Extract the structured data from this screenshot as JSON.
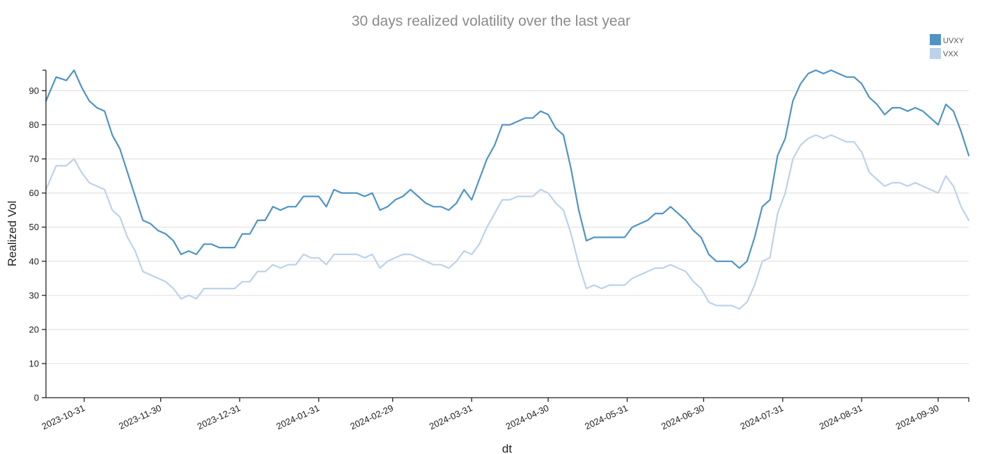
{
  "chart_data": {
    "type": "line",
    "title": "30 days realized volatility over the last year",
    "xlabel": "dt",
    "ylabel": "Realized Vol",
    "ylim": [
      0,
      96
    ],
    "xlim": [
      "2023-10-16",
      "2024-10-12"
    ],
    "yticks": [
      0,
      10,
      20,
      30,
      40,
      50,
      60,
      70,
      80,
      90
    ],
    "xticks": [
      "2023-10-31",
      "2023-11-30",
      "2023-12-31",
      "2024-01-31",
      "2024-02-29",
      "2024-03-31",
      "2024-04-30",
      "2024-05-31",
      "2024-06-30",
      "2024-07-31",
      "2024-08-31",
      "2024-09-30"
    ],
    "grid": true,
    "legend_position": "top-right",
    "series": [
      {
        "name": "UVXY",
        "color": "#4f94c4",
        "x": [
          "2023-10-16",
          "2023-10-20",
          "2023-10-24",
          "2023-10-27",
          "2023-10-30",
          "2023-11-02",
          "2023-11-05",
          "2023-11-08",
          "2023-11-11",
          "2023-11-14",
          "2023-11-17",
          "2023-11-20",
          "2023-11-23",
          "2023-11-26",
          "2023-11-29",
          "2023-12-02",
          "2023-12-05",
          "2023-12-08",
          "2023-12-11",
          "2023-12-14",
          "2023-12-17",
          "2023-12-20",
          "2023-12-23",
          "2023-12-26",
          "2023-12-29",
          "2024-01-01",
          "2024-01-04",
          "2024-01-07",
          "2024-01-10",
          "2024-01-13",
          "2024-01-16",
          "2024-01-19",
          "2024-01-22",
          "2024-01-25",
          "2024-01-28",
          "2024-01-31",
          "2024-02-03",
          "2024-02-06",
          "2024-02-09",
          "2024-02-12",
          "2024-02-15",
          "2024-02-18",
          "2024-02-21",
          "2024-02-24",
          "2024-02-27",
          "2024-03-01",
          "2024-03-04",
          "2024-03-07",
          "2024-03-10",
          "2024-03-13",
          "2024-03-16",
          "2024-03-19",
          "2024-03-22",
          "2024-03-25",
          "2024-03-28",
          "2024-03-31",
          "2024-04-03",
          "2024-04-06",
          "2024-04-09",
          "2024-04-12",
          "2024-04-15",
          "2024-04-18",
          "2024-04-21",
          "2024-04-24",
          "2024-04-27",
          "2024-04-30",
          "2024-05-03",
          "2024-05-06",
          "2024-05-09",
          "2024-05-12",
          "2024-05-15",
          "2024-05-18",
          "2024-05-21",
          "2024-05-24",
          "2024-05-27",
          "2024-05-30",
          "2024-06-02",
          "2024-06-05",
          "2024-06-08",
          "2024-06-11",
          "2024-06-14",
          "2024-06-17",
          "2024-06-20",
          "2024-06-23",
          "2024-06-26",
          "2024-06-29",
          "2024-07-02",
          "2024-07-05",
          "2024-07-08",
          "2024-07-11",
          "2024-07-14",
          "2024-07-17",
          "2024-07-20",
          "2024-07-23",
          "2024-07-26",
          "2024-07-29",
          "2024-08-01",
          "2024-08-04",
          "2024-08-07",
          "2024-08-10",
          "2024-08-13",
          "2024-08-16",
          "2024-08-19",
          "2024-08-22",
          "2024-08-25",
          "2024-08-28",
          "2024-08-31",
          "2024-09-03",
          "2024-09-06",
          "2024-09-09",
          "2024-09-12",
          "2024-09-15",
          "2024-09-18",
          "2024-09-21",
          "2024-09-24",
          "2024-09-27",
          "2024-09-30",
          "2024-10-03",
          "2024-10-06",
          "2024-10-09",
          "2024-10-12"
        ],
        "values": [
          87,
          94,
          93,
          96,
          91,
          87,
          85,
          84,
          77,
          73,
          66,
          59,
          52,
          51,
          49,
          48,
          46,
          42,
          43,
          42,
          45,
          45,
          44,
          44,
          44,
          48,
          48,
          52,
          52,
          56,
          55,
          56,
          56,
          59,
          59,
          59,
          56,
          61,
          60,
          60,
          60,
          59,
          60,
          55,
          56,
          58,
          59,
          61,
          59,
          57,
          56,
          56,
          55,
          57,
          61,
          58,
          64,
          70,
          74,
          80,
          80,
          81,
          82,
          82,
          84,
          83,
          79,
          77,
          67,
          55,
          46,
          47,
          47,
          47,
          47,
          47,
          50,
          51,
          52,
          54,
          54,
          56,
          54,
          52,
          49,
          47,
          42,
          40,
          40,
          40,
          38,
          40,
          47,
          56,
          58,
          71,
          76,
          87,
          92,
          95,
          96,
          95,
          96,
          95,
          94,
          94,
          92,
          88,
          86,
          83,
          85,
          85,
          84,
          85,
          84,
          82,
          80,
          86,
          84,
          78,
          71
        ]
      },
      {
        "name": "VXX",
        "color": "#bcd2ea",
        "x": [
          "2023-10-16",
          "2023-10-20",
          "2023-10-24",
          "2023-10-27",
          "2023-10-30",
          "2023-11-02",
          "2023-11-05",
          "2023-11-08",
          "2023-11-11",
          "2023-11-14",
          "2023-11-17",
          "2023-11-20",
          "2023-11-23",
          "2023-11-26",
          "2023-11-29",
          "2023-12-02",
          "2023-12-05",
          "2023-12-08",
          "2023-12-11",
          "2023-12-14",
          "2023-12-17",
          "2023-12-20",
          "2023-12-23",
          "2023-12-26",
          "2023-12-29",
          "2024-01-01",
          "2024-01-04",
          "2024-01-07",
          "2024-01-10",
          "2024-01-13",
          "2024-01-16",
          "2024-01-19",
          "2024-01-22",
          "2024-01-25",
          "2024-01-28",
          "2024-01-31",
          "2024-02-03",
          "2024-02-06",
          "2024-02-09",
          "2024-02-12",
          "2024-02-15",
          "2024-02-18",
          "2024-02-21",
          "2024-02-24",
          "2024-02-27",
          "2024-03-01",
          "2024-03-04",
          "2024-03-07",
          "2024-03-10",
          "2024-03-13",
          "2024-03-16",
          "2024-03-19",
          "2024-03-22",
          "2024-03-25",
          "2024-03-28",
          "2024-03-31",
          "2024-04-03",
          "2024-04-06",
          "2024-04-09",
          "2024-04-12",
          "2024-04-15",
          "2024-04-18",
          "2024-04-21",
          "2024-04-24",
          "2024-04-27",
          "2024-04-30",
          "2024-05-03",
          "2024-05-06",
          "2024-05-09",
          "2024-05-12",
          "2024-05-15",
          "2024-05-18",
          "2024-05-21",
          "2024-05-24",
          "2024-05-27",
          "2024-05-30",
          "2024-06-02",
          "2024-06-05",
          "2024-06-08",
          "2024-06-11",
          "2024-06-14",
          "2024-06-17",
          "2024-06-20",
          "2024-06-23",
          "2024-06-26",
          "2024-06-29",
          "2024-07-02",
          "2024-07-05",
          "2024-07-08",
          "2024-07-11",
          "2024-07-14",
          "2024-07-17",
          "2024-07-20",
          "2024-07-23",
          "2024-07-26",
          "2024-07-29",
          "2024-08-01",
          "2024-08-04",
          "2024-08-07",
          "2024-08-10",
          "2024-08-13",
          "2024-08-16",
          "2024-08-19",
          "2024-08-22",
          "2024-08-25",
          "2024-08-28",
          "2024-08-31",
          "2024-09-03",
          "2024-09-06",
          "2024-09-09",
          "2024-09-12",
          "2024-09-15",
          "2024-09-18",
          "2024-09-21",
          "2024-09-24",
          "2024-09-27",
          "2024-09-30",
          "2024-10-03",
          "2024-10-06",
          "2024-10-09",
          "2024-10-12"
        ],
        "values": [
          61,
          68,
          68,
          70,
          66,
          63,
          62,
          61,
          55,
          53,
          47,
          43,
          37,
          36,
          35,
          34,
          32,
          29,
          30,
          29,
          32,
          32,
          32,
          32,
          32,
          34,
          34,
          37,
          37,
          39,
          38,
          39,
          39,
          42,
          41,
          41,
          39,
          42,
          42,
          42,
          42,
          41,
          42,
          38,
          40,
          41,
          42,
          42,
          41,
          40,
          39,
          39,
          38,
          40,
          43,
          42,
          45,
          50,
          54,
          58,
          58,
          59,
          59,
          59,
          61,
          60,
          57,
          55,
          48,
          39,
          32,
          33,
          32,
          33,
          33,
          33,
          35,
          36,
          37,
          38,
          38,
          39,
          38,
          37,
          34,
          32,
          28,
          27,
          27,
          27,
          26,
          28,
          33,
          40,
          41,
          54,
          60,
          70,
          74,
          76,
          77,
          76,
          77,
          76,
          75,
          75,
          72,
          66,
          64,
          62,
          63,
          63,
          62,
          63,
          62,
          61,
          60,
          65,
          62,
          56,
          52
        ]
      }
    ]
  }
}
